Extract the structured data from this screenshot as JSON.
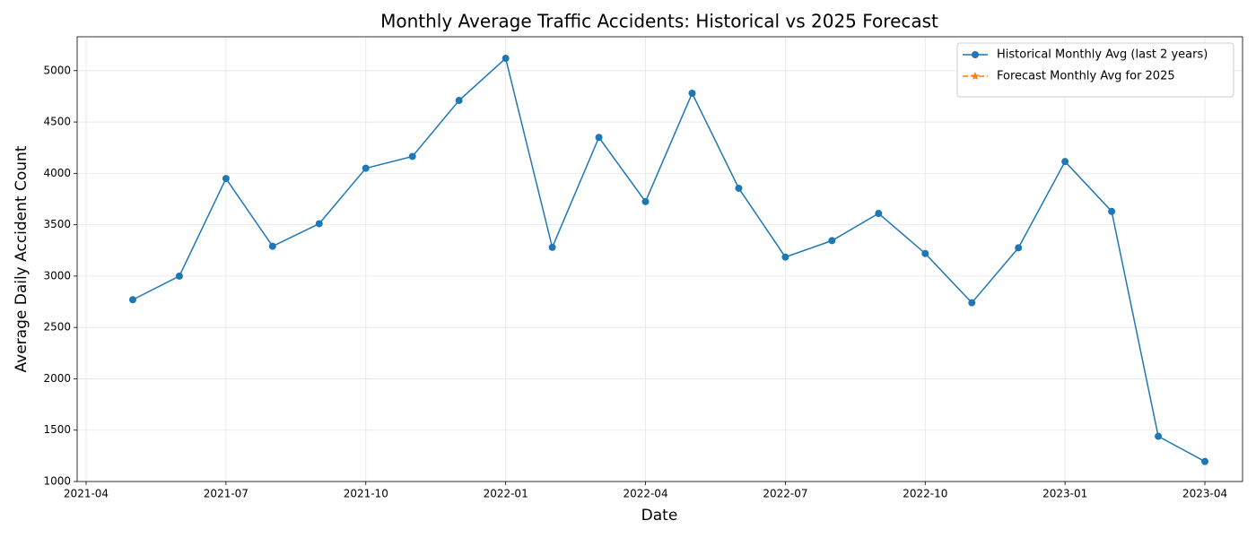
{
  "chart_data": {
    "type": "line",
    "title": "Monthly Average Traffic Accidents: Historical vs 2025 Forecast",
    "x_label": "Date",
    "y_label": "Average Daily Accident Count",
    "x": [
      "2021-05",
      "2021-06",
      "2021-07",
      "2021-08",
      "2021-09",
      "2021-10",
      "2021-11",
      "2021-12",
      "2022-01",
      "2022-02",
      "2022-03",
      "2022-04",
      "2022-05",
      "2022-06",
      "2022-07",
      "2022-08",
      "2022-09",
      "2022-10",
      "2022-11",
      "2022-12",
      "2023-01",
      "2023-02",
      "2023-03",
      "2023-04"
    ],
    "series": [
      {
        "name": "Historical Monthly Avg (last 2 years)",
        "color": "#1f77b4",
        "linestyle": "solid",
        "marker": "circle",
        "values": [
          2770,
          3000,
          3950,
          3290,
          3510,
          4050,
          4165,
          4710,
          5120,
          3280,
          4350,
          3725,
          4780,
          3855,
          3185,
          3345,
          3610,
          3220,
          2740,
          3275,
          4115,
          3630,
          1440,
          1195
        ]
      },
      {
        "name": "Forecast Monthly Avg for 2025",
        "color": "#ff7f0e",
        "linestyle": "dashed",
        "marker": "star",
        "values": [
          null,
          null,
          null,
          null,
          null,
          null,
          null,
          null,
          null,
          null,
          null,
          null,
          null,
          null,
          null,
          null,
          null,
          null,
          null,
          null,
          null,
          null,
          null,
          null
        ]
      }
    ],
    "xlim": [
      "2021-04",
      "2023-05"
    ],
    "xticks": [
      "2021-04",
      "2021-07",
      "2021-10",
      "2022-01",
      "2022-04",
      "2022-07",
      "2022-10",
      "2023-01",
      "2023-04"
    ],
    "ylim": [
      1000,
      5330
    ],
    "yticks": [
      1000,
      1500,
      2000,
      2500,
      3000,
      3500,
      4000,
      4500,
      5000
    ],
    "grid": true,
    "legend": "upper right"
  }
}
